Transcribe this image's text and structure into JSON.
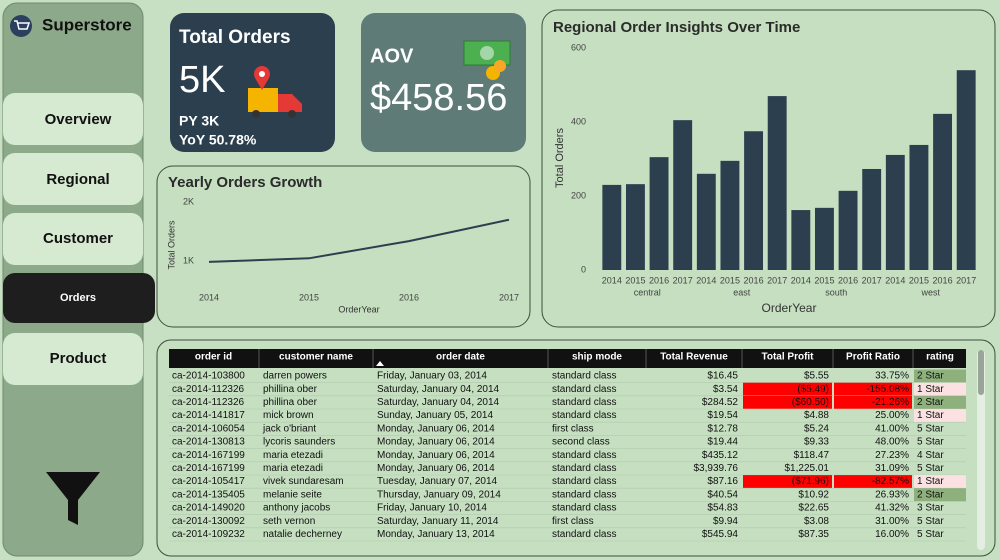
{
  "app": {
    "title": "Superstore"
  },
  "nav": [
    "Overview",
    "Regional",
    "Customer",
    "Orders",
    "Product"
  ],
  "cards": {
    "total_orders": {
      "title": "Total Orders",
      "value": "5K",
      "previous": "PY 3K",
      "yoy": "YoY 50.78%"
    },
    "aov": {
      "title": "AOV",
      "value": "$458.56"
    }
  },
  "chart_data": [
    {
      "type": "line",
      "title": "Yearly Orders Growth",
      "x_label": "OrderYear",
      "y_label": "Total Orders",
      "x": [
        2014,
        2015,
        2016,
        2017
      ],
      "values": [
        990,
        1050,
        1340,
        1700
      ],
      "color": "#2b3f4f",
      "xlim": [
        2014,
        2017
      ],
      "xticks": [
        2014,
        2015,
        2016,
        2017
      ],
      "ylim": [
        600,
        2100
      ],
      "yticks": [
        {
          "value": 1000,
          "label": "1K"
        },
        {
          "value": 2000,
          "label": "2K"
        }
      ]
    },
    {
      "type": "bar",
      "title": "Regional Order Insights Over Time",
      "x_label": "OrderYear",
      "y_label": "Total Orders",
      "categories": [
        "2014",
        "2015",
        "2016",
        "2017"
      ],
      "color": "#2b3f4f",
      "groups": [
        {
          "name": "central",
          "values": [
            230,
            232,
            305,
            405
          ]
        },
        {
          "name": "east",
          "values": [
            260,
            295,
            375,
            470
          ]
        },
        {
          "name": "south",
          "values": [
            162,
            168,
            214,
            273
          ]
        },
        {
          "name": "west",
          "values": [
            311,
            338,
            422,
            540
          ]
        }
      ],
      "ylim": [
        0,
        600
      ],
      "yticks": [
        0,
        200,
        400,
        600
      ]
    }
  ],
  "table": {
    "columns": [
      "order id",
      "customer name",
      "order date",
      "ship mode",
      "Total Revenue",
      "Total Profit",
      "Profit Ratio",
      "rating"
    ],
    "rows": [
      [
        "ca-2014-103800",
        "darren powers",
        "Friday, January 03, 2014",
        "standard class",
        "$16.45",
        "$5.55",
        "33.75%",
        "2 Star"
      ],
      [
        "ca-2014-112326",
        "phillina ober",
        "Saturday, January 04, 2014",
        "standard class",
        "$3.54",
        "($5.49)",
        "-155.08%",
        "1 Star"
      ],
      [
        "ca-2014-112326",
        "phillina ober",
        "Saturday, January 04, 2014",
        "standard class",
        "$284.52",
        "($60.50)",
        "-21.26%",
        "2 Star"
      ],
      [
        "ca-2014-141817",
        "mick brown",
        "Sunday, January 05, 2014",
        "standard class",
        "$19.54",
        "$4.88",
        "25.00%",
        "1 Star"
      ],
      [
        "ca-2014-106054",
        "jack o'briant",
        "Monday, January 06, 2014",
        "first class",
        "$12.78",
        "$5.24",
        "41.00%",
        "5 Star"
      ],
      [
        "ca-2014-130813",
        "lycoris saunders",
        "Monday, January 06, 2014",
        "second class",
        "$19.44",
        "$9.33",
        "48.00%",
        "5 Star"
      ],
      [
        "ca-2014-167199",
        "maria etezadi",
        "Monday, January 06, 2014",
        "standard class",
        "$435.12",
        "$118.47",
        "27.23%",
        "4 Star"
      ],
      [
        "ca-2014-167199",
        "maria etezadi",
        "Monday, January 06, 2014",
        "standard class",
        "$3,939.76",
        "$1,225.01",
        "31.09%",
        "5 Star"
      ],
      [
        "ca-2014-105417",
        "vivek sundaresam",
        "Tuesday, January 07, 2014",
        "standard class",
        "$87.16",
        "($71.96)",
        "-82.57%",
        "1 Star"
      ],
      [
        "ca-2014-135405",
        "melanie seite",
        "Thursday, January 09, 2014",
        "standard class",
        "$40.54",
        "$10.92",
        "26.93%",
        "2 Star"
      ],
      [
        "ca-2014-149020",
        "anthony jacobs",
        "Friday, January 10, 2014",
        "standard class",
        "$54.83",
        "$22.65",
        "41.32%",
        "3 Star"
      ],
      [
        "ca-2014-130092",
        "seth vernon",
        "Saturday, January 11, 2014",
        "first class",
        "$9.94",
        "$3.08",
        "31.00%",
        "5 Star"
      ],
      [
        "ca-2014-109232",
        "natalie decherney",
        "Monday, January 13, 2014",
        "standard class",
        "$545.94",
        "$87.35",
        "16.00%",
        "5 Star"
      ]
    ]
  }
}
